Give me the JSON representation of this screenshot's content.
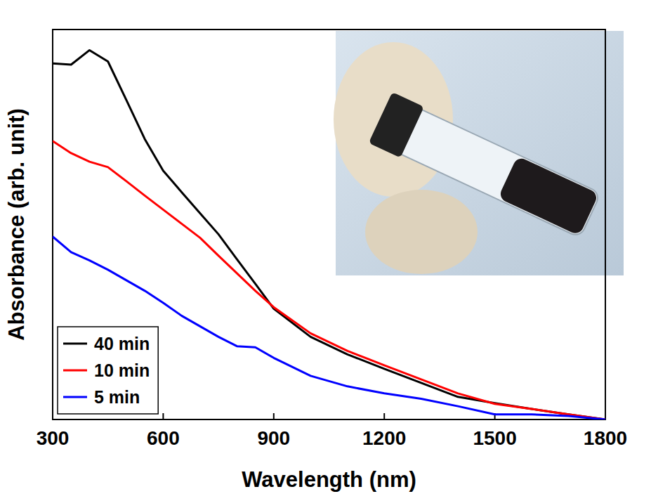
{
  "chart_data": {
    "type": "line",
    "x_label": "Wavelength (nm)",
    "y_label": "Absorbance (arb. unit)",
    "x": [
      300,
      350,
      400,
      450,
      500,
      550,
      600,
      650,
      700,
      750,
      800,
      850,
      900,
      1000,
      1100,
      1200,
      1300,
      1400,
      1500,
      1600,
      1700,
      1800
    ],
    "series": [
      {
        "name": "40 min",
        "color": "#000000",
        "values": [
          91.3,
          91.0,
          94.7,
          91.8,
          81.9,
          71.9,
          63.8,
          58.3,
          52.9,
          47.5,
          41.1,
          34.8,
          28.4,
          21.2,
          16.7,
          13.0,
          9.4,
          5.8,
          4.2,
          2.7,
          1.3,
          0
        ]
      },
      {
        "name": "10 min",
        "color": "#ff0000",
        "values": [
          71.4,
          68.3,
          66.1,
          64.7,
          61.1,
          57.4,
          53.8,
          50.2,
          46.6,
          42.0,
          37.5,
          33.0,
          28.8,
          22.1,
          17.6,
          13.9,
          10.3,
          6.7,
          4.0,
          2.7,
          1.3,
          0
        ]
      },
      {
        "name": "5 min",
        "color": "#0000ff",
        "values": [
          46.9,
          42.9,
          40.8,
          38.4,
          35.7,
          33.0,
          29.9,
          26.6,
          23.9,
          21.2,
          18.8,
          18.5,
          15.8,
          11.2,
          8.5,
          6.7,
          5.3,
          3.4,
          1.3,
          1.3,
          0.9,
          0
        ]
      }
    ],
    "xlim": [
      300,
      1800
    ],
    "xticks": [
      300,
      600,
      900,
      1200,
      1500,
      1800
    ],
    "ylim": [
      0,
      100
    ],
    "tick_labels": "x",
    "legend": "lower left"
  }
}
